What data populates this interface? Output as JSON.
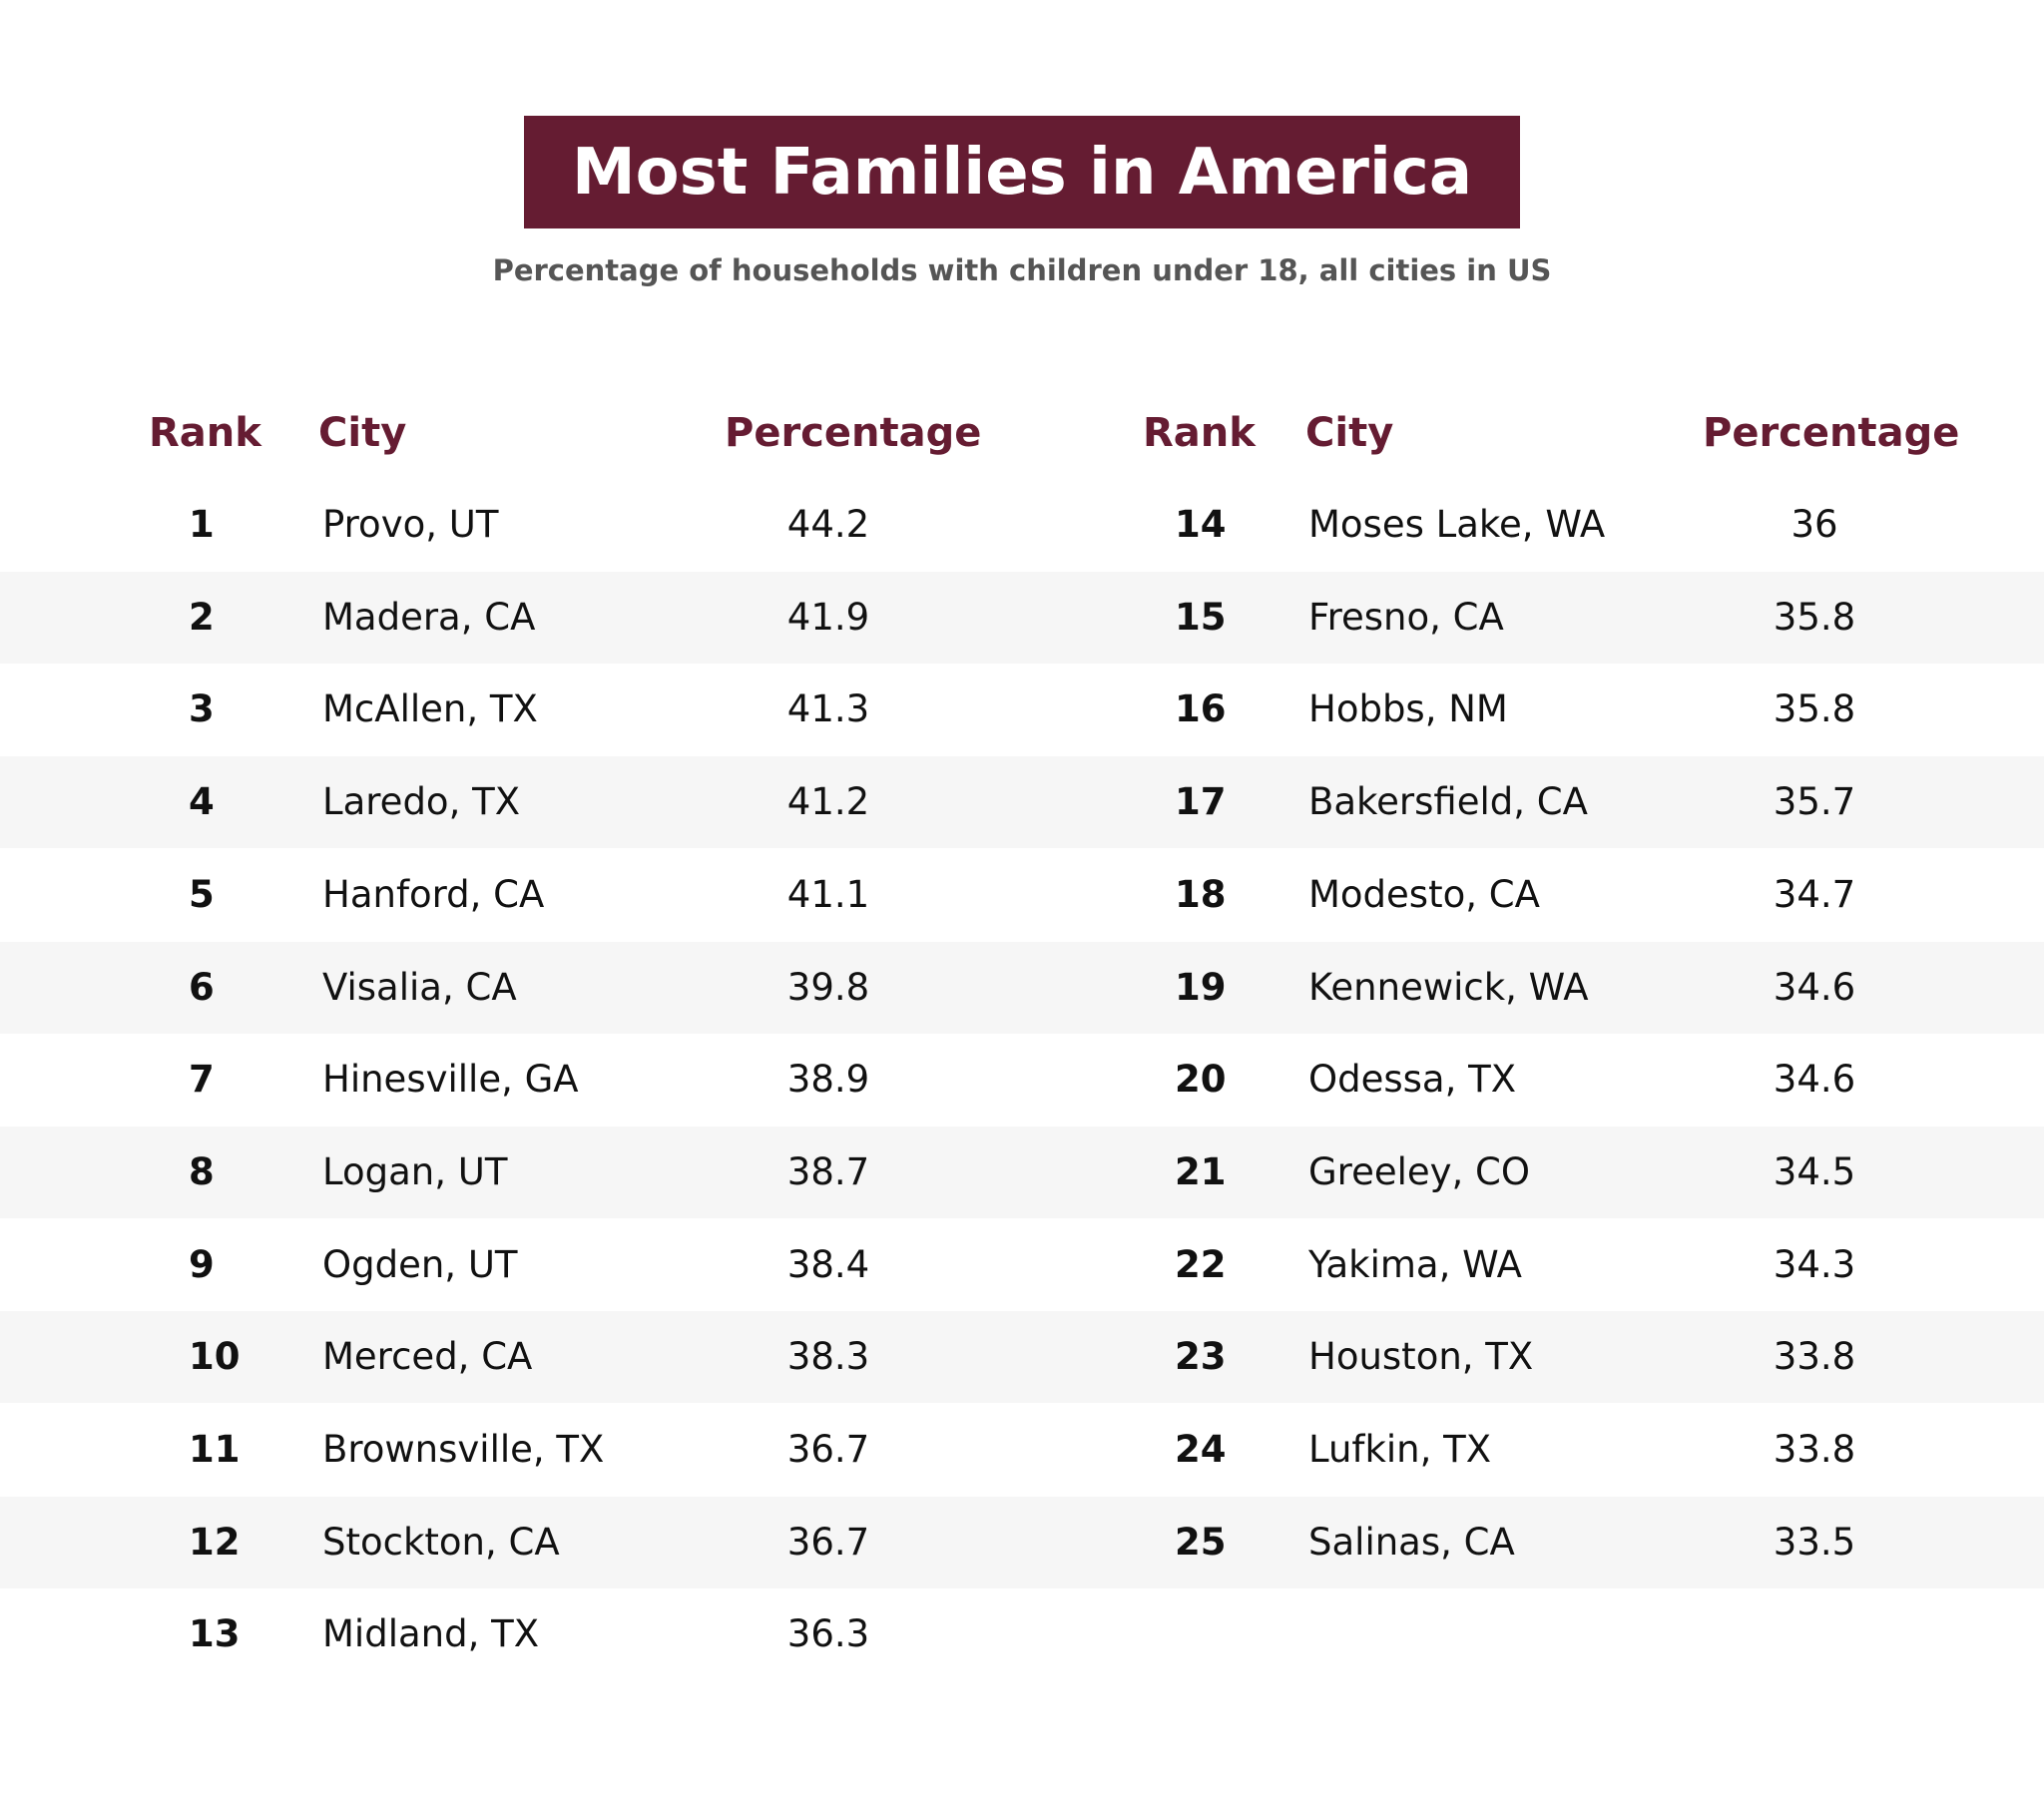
{
  "chart_data": {
    "type": "table",
    "title": "Most Families in America",
    "subtitle": "Percentage of households with children under 18, all cities in US",
    "columns": [
      "Rank",
      "City",
      "Percentage"
    ],
    "rows": [
      {
        "rank": "1",
        "city": "Provo, UT",
        "percentage": "44.2"
      },
      {
        "rank": "2",
        "city": "Madera, CA",
        "percentage": "41.9"
      },
      {
        "rank": "3",
        "city": "McAllen, TX",
        "percentage": "41.3"
      },
      {
        "rank": "4",
        "city": "Laredo, TX",
        "percentage": "41.2"
      },
      {
        "rank": "5",
        "city": "Hanford, CA",
        "percentage": "41.1"
      },
      {
        "rank": "6",
        "city": "Visalia, CA",
        "percentage": "39.8"
      },
      {
        "rank": "7",
        "city": "Hinesville, GA",
        "percentage": "38.9"
      },
      {
        "rank": "8",
        "city": "Logan, UT",
        "percentage": "38.7"
      },
      {
        "rank": "9",
        "city": "Ogden, UT",
        "percentage": "38.4"
      },
      {
        "rank": "10",
        "city": "Merced, CA",
        "percentage": "38.3"
      },
      {
        "rank": "11",
        "city": "Brownsville, TX",
        "percentage": "36.7"
      },
      {
        "rank": "12",
        "city": "Stockton, CA",
        "percentage": "36.7"
      },
      {
        "rank": "13",
        "city": "Midland, TX",
        "percentage": "36.3"
      },
      {
        "rank": "14",
        "city": "Moses Lake, WA",
        "percentage": "36"
      },
      {
        "rank": "15",
        "city": "Fresno, CA",
        "percentage": "35.8"
      },
      {
        "rank": "16",
        "city": "Hobbs, NM",
        "percentage": "35.8"
      },
      {
        "rank": "17",
        "city": "Bakersfield, CA",
        "percentage": "35.7"
      },
      {
        "rank": "18",
        "city": "Modesto, CA",
        "percentage": "34.7"
      },
      {
        "rank": "19",
        "city": "Kennewick, WA",
        "percentage": "34.6"
      },
      {
        "rank": "20",
        "city": "Odessa, TX",
        "percentage": "34.6"
      },
      {
        "rank": "21",
        "city": "Greeley, CO",
        "percentage": "34.5"
      },
      {
        "rank": "22",
        "city": "Yakima, WA",
        "percentage": "34.3"
      },
      {
        "rank": "23",
        "city": "Houston, TX",
        "percentage": "33.8"
      },
      {
        "rank": "24",
        "city": "Lufkin, TX",
        "percentage": "33.8"
      },
      {
        "rank": "25",
        "city": "Salinas, CA",
        "percentage": "33.5"
      }
    ]
  },
  "colors": {
    "accent": "#651c32",
    "stripe": "#f6f6f6",
    "subtitle": "#555555",
    "text": "#111111"
  }
}
